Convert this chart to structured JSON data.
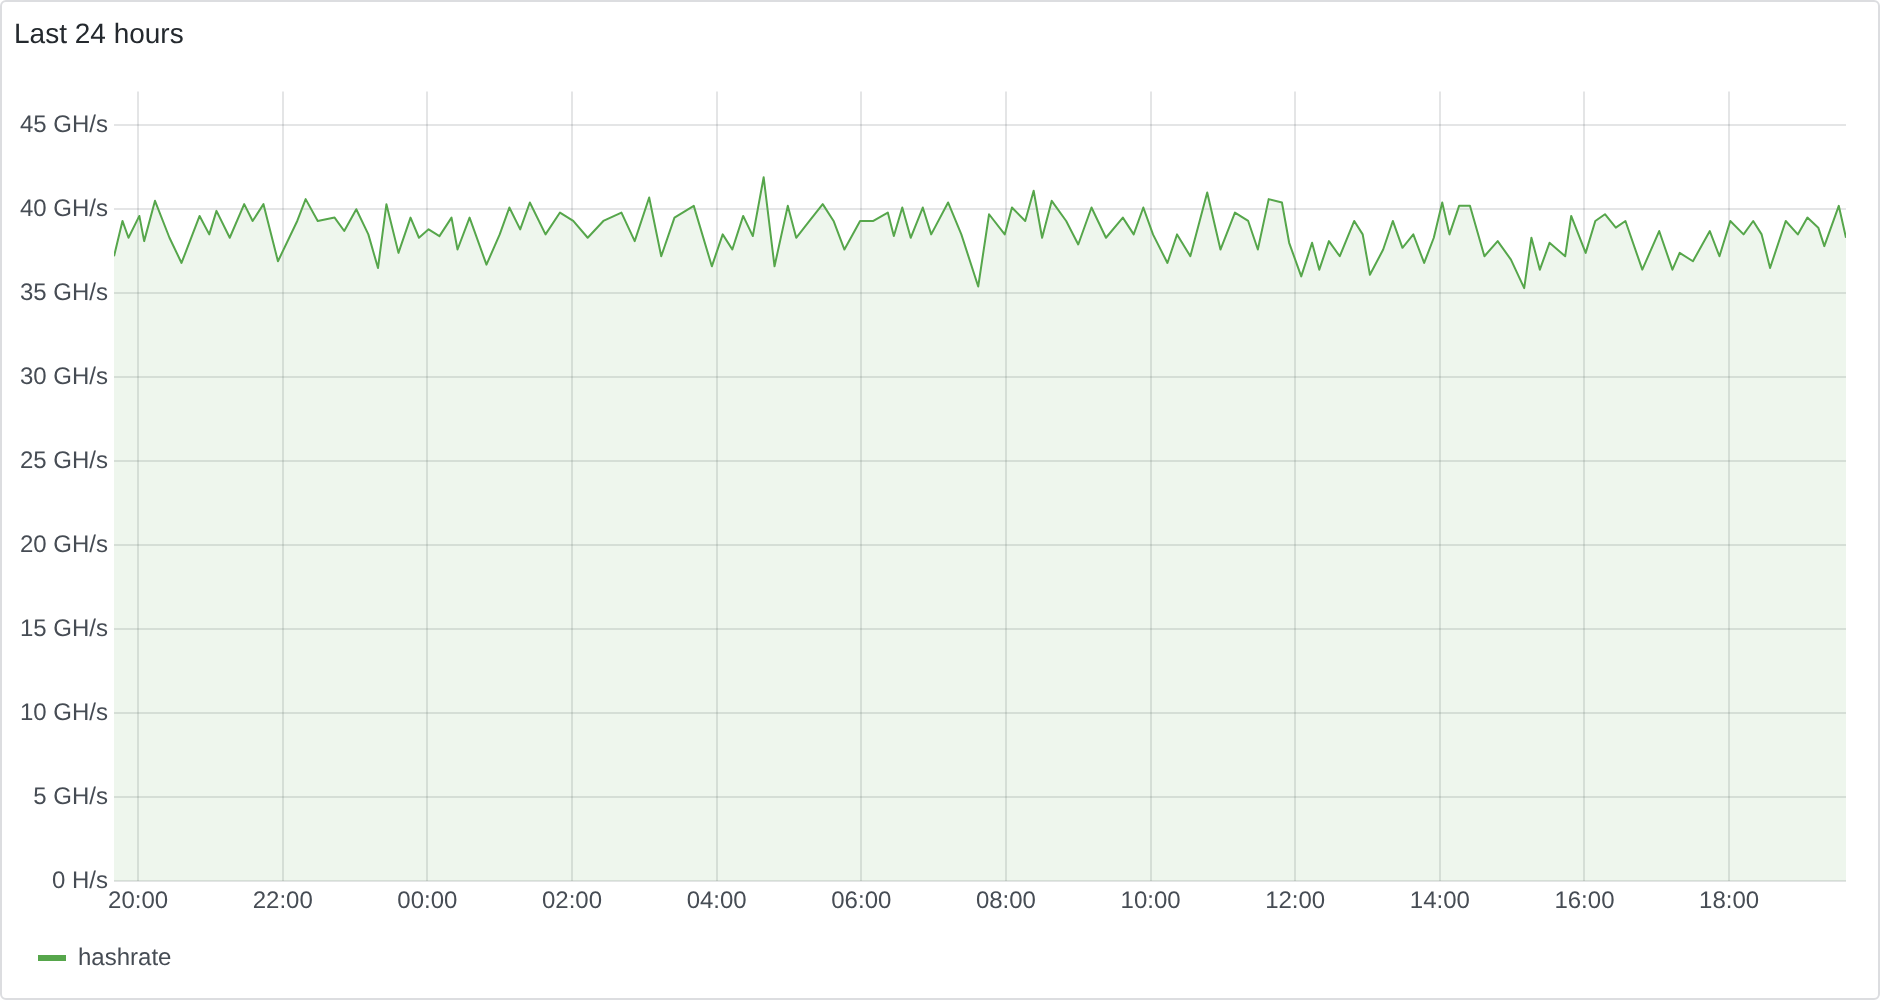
{
  "chart_data": {
    "type": "area",
    "title": "Last 24 hours",
    "legend": "bottom left",
    "grid": true,
    "xlim": [
      "--01-01T19:40",
      "--01-02T19:37"
    ],
    "xticks": [
      {
        "value": "--01-01T20:00",
        "label": "20:00"
      },
      {
        "value": "--01-01T22:00",
        "label": "22:00"
      },
      {
        "value": "--01-02T00:00",
        "label": "00:00"
      },
      {
        "value": "--01-02T02:00",
        "label": "02:00"
      },
      {
        "value": "--01-02T04:00",
        "label": "04:00"
      },
      {
        "value": "--01-02T06:00",
        "label": "06:00"
      },
      {
        "value": "--01-02T08:00",
        "label": "08:00"
      },
      {
        "value": "--01-02T10:00",
        "label": "10:00"
      },
      {
        "value": "--01-02T12:00",
        "label": "12:00"
      },
      {
        "value": "--01-02T14:00",
        "label": "14:00"
      },
      {
        "value": "--01-02T16:00",
        "label": "16:00"
      },
      {
        "value": "--01-02T18:00",
        "label": "18:00"
      }
    ],
    "ylim": [
      0,
      47
    ],
    "yticks": [
      {
        "value": 0,
        "label": "0 H/s"
      },
      {
        "value": 5,
        "label": "5 GH/s"
      },
      {
        "value": 10,
        "label": "10 GH/s"
      },
      {
        "value": 15,
        "label": "15 GH/s"
      },
      {
        "value": 20,
        "label": "20 GH/s"
      },
      {
        "value": 25,
        "label": "25 GH/s"
      },
      {
        "value": 30,
        "label": "30 GH/s"
      },
      {
        "value": 35,
        "label": "35 GH/s"
      },
      {
        "value": 40,
        "label": "40 GH/s"
      },
      {
        "value": 45,
        "label": "45 GH/s"
      }
    ],
    "series": [
      {
        "name": "hashrate",
        "color": "#56a64b",
        "x": [
          "--01-01T19:40",
          "--01-01T19:47",
          "--01-01T19:52",
          "--01-01T20:01",
          "--01-01T20:05",
          "--01-01T20:14",
          "--01-01T20:26",
          "--01-01T20:36",
          "--01-01T20:51",
          "--01-01T20:59",
          "--01-01T21:05",
          "--01-01T21:16",
          "--01-01T21:28",
          "--01-01T21:35",
          "--01-01T21:44",
          "--01-01T21:56",
          "--01-01T22:12",
          "--01-01T22:19",
          "--01-01T22:29",
          "--01-01T22:43",
          "--01-01T22:51",
          "--01-01T23:01",
          "--01-01T23:11",
          "--01-01T23:19",
          "--01-01T23:26",
          "--01-01T23:36",
          "--01-01T23:46",
          "--01-01T23:53",
          "--01-02T00:01",
          "--01-02T00:10",
          "--01-02T00:20",
          "--01-02T00:25",
          "--01-02T00:35",
          "--01-02T00:49",
          "--01-02T01:00",
          "--01-02T01:08",
          "--01-02T01:17",
          "--01-02T01:25",
          "--01-02T01:38",
          "--01-02T01:50",
          "--01-02T02:01",
          "--01-02T02:13",
          "--01-02T02:26",
          "--01-02T02:41",
          "--01-02T02:52",
          "--01-02T03:04",
          "--01-02T03:14",
          "--01-02T03:25",
          "--01-02T03:41",
          "--01-02T03:56",
          "--01-02T04:05",
          "--01-02T04:13",
          "--01-02T04:22",
          "--01-02T04:30",
          "--01-02T04:39",
          "--01-02T04:48",
          "--01-02T04:59",
          "--01-02T05:06",
          "--01-02T05:17",
          "--01-02T05:28",
          "--01-02T05:37",
          "--01-02T05:46",
          "--01-02T05:59",
          "--01-02T06:10",
          "--01-02T06:22",
          "--01-02T06:27",
          "--01-02T06:34",
          "--01-02T06:41",
          "--01-02T06:51",
          "--01-02T06:58",
          "--01-02T07:12",
          "--01-02T07:23",
          "--01-02T07:37",
          "--01-02T07:46",
          "--01-02T07:59",
          "--01-02T08:05",
          "--01-02T08:16",
          "--01-02T08:23",
          "--01-02T08:30",
          "--01-02T08:38",
          "--01-02T08:50",
          "--01-02T09:00",
          "--01-02T09:11",
          "--01-02T09:23",
          "--01-02T09:37",
          "--01-02T09:46",
          "--01-02T09:54",
          "--01-02T10:02",
          "--01-02T10:14",
          "--01-02T10:22",
          "--01-02T10:33",
          "--01-02T10:47",
          "--01-02T10:58",
          "--01-02T11:10",
          "--01-02T11:21",
          "--01-02T11:29",
          "--01-02T11:38",
          "--01-02T11:49",
          "--01-02T11:55",
          "--01-02T12:05",
          "--01-02T12:14",
          "--01-02T12:20",
          "--01-02T12:28",
          "--01-02T12:37",
          "--01-02T12:49",
          "--01-02T12:56",
          "--01-02T13:02",
          "--01-02T13:13",
          "--01-02T13:21",
          "--01-02T13:29",
          "--01-02T13:38",
          "--01-02T13:47",
          "--01-02T13:55",
          "--01-02T14:02",
          "--01-02T14:08",
          "--01-02T14:16",
          "--01-02T14:25",
          "--01-02T14:37",
          "--01-02T14:48",
          "--01-02T14:59",
          "--01-02T15:10",
          "--01-02T15:16",
          "--01-02T15:23",
          "--01-02T15:31",
          "--01-02T15:44",
          "--01-02T15:49",
          "--01-02T16:01",
          "--01-02T16:09",
          "--01-02T16:17",
          "--01-02T16:26",
          "--01-02T16:34",
          "--01-02T16:48",
          "--01-02T17:02",
          "--01-02T17:13",
          "--01-02T17:19",
          "--01-02T17:30",
          "--01-02T17:44",
          "--01-02T17:52",
          "--01-02T18:01",
          "--01-02T18:12",
          "--01-02T18:20",
          "--01-02T18:27",
          "--01-02T18:34",
          "--01-02T18:47",
          "--01-02T18:57",
          "--01-02T19:05",
          "--01-02T19:14",
          "--01-02T19:19",
          "--01-02T19:31",
          "--01-02T19:37"
        ],
        "values": [
          37.2,
          39.3,
          38.3,
          39.6,
          38.1,
          40.5,
          38.3,
          36.8,
          39.6,
          38.5,
          39.9,
          38.3,
          40.3,
          39.3,
          40.3,
          36.9,
          39.3,
          40.6,
          39.3,
          39.5,
          38.7,
          40.0,
          38.5,
          36.5,
          40.3,
          37.4,
          39.5,
          38.3,
          38.8,
          38.4,
          39.5,
          37.6,
          39.5,
          36.7,
          38.5,
          40.1,
          38.8,
          40.4,
          38.5,
          39.8,
          39.3,
          38.3,
          39.3,
          39.8,
          38.1,
          40.7,
          37.2,
          39.5,
          40.2,
          36.6,
          38.5,
          37.6,
          39.6,
          38.4,
          41.9,
          36.6,
          40.2,
          38.3,
          39.3,
          40.3,
          39.3,
          37.6,
          39.3,
          39.3,
          39.8,
          38.4,
          40.1,
          38.3,
          40.1,
          38.5,
          40.4,
          38.5,
          35.4,
          39.7,
          38.5,
          40.1,
          39.3,
          41.1,
          38.3,
          40.5,
          39.3,
          37.9,
          40.1,
          38.3,
          39.5,
          38.5,
          40.1,
          38.5,
          36.8,
          38.5,
          37.2,
          41.0,
          37.6,
          39.8,
          39.3,
          37.6,
          40.6,
          40.4,
          38.0,
          36.0,
          38.0,
          36.4,
          38.1,
          37.2,
          39.3,
          38.5,
          36.1,
          37.6,
          39.3,
          37.7,
          38.5,
          36.8,
          38.3,
          40.4,
          38.5,
          40.2,
          40.2,
          37.2,
          38.1,
          37.0,
          35.3,
          38.3,
          36.4,
          38.0,
          37.2,
          39.6,
          37.4,
          39.3,
          39.7,
          38.9,
          39.3,
          36.4,
          38.7,
          36.4,
          37.4,
          36.9,
          38.7,
          37.2,
          39.3,
          38.5,
          39.3,
          38.5,
          36.5,
          39.3,
          38.5,
          39.5,
          38.9,
          37.8,
          40.2,
          38.3
        ]
      }
    ]
  }
}
